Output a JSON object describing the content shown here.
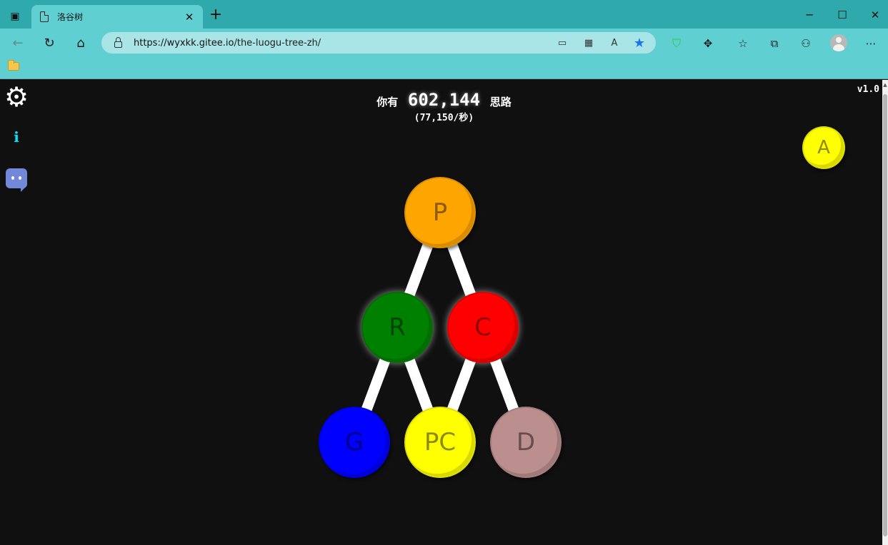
{
  "browser": {
    "tab_title": "洛谷树",
    "tab_close": "✕",
    "new_tab": "+",
    "url_host": "https://wyxkk.gitee.io",
    "url_path": "/the-luogu-tree-zh/",
    "minimize": "─",
    "maximize": "☐",
    "close": "✕"
  },
  "game": {
    "version": "v1.0",
    "points_prefix": "你有",
    "points_amount": "602,144",
    "points_suffix": "思路",
    "rate": "(77,150/秒)",
    "nodes": [
      {
        "id": "P",
        "label": "P",
        "color": "#ffa500"
      },
      {
        "id": "R",
        "label": "R",
        "color": "#008000"
      },
      {
        "id": "C",
        "label": "C",
        "color": "#ff0000"
      },
      {
        "id": "G",
        "label": "G",
        "color": "#0000ff"
      },
      {
        "id": "PC",
        "label": "PC",
        "color": "#ffff00"
      },
      {
        "id": "D",
        "label": "D",
        "color": "#bc8f8f"
      },
      {
        "id": "A",
        "label": "A",
        "color": "#ffff00"
      }
    ],
    "links": [
      [
        "P",
        "R"
      ],
      [
        "P",
        "C"
      ],
      [
        "R",
        "G"
      ],
      [
        "R",
        "PC"
      ],
      [
        "C",
        "PC"
      ],
      [
        "C",
        "D"
      ]
    ]
  },
  "icons": {
    "settings": "gear-icon",
    "info": "info-icon",
    "discord": "discord-icon"
  }
}
